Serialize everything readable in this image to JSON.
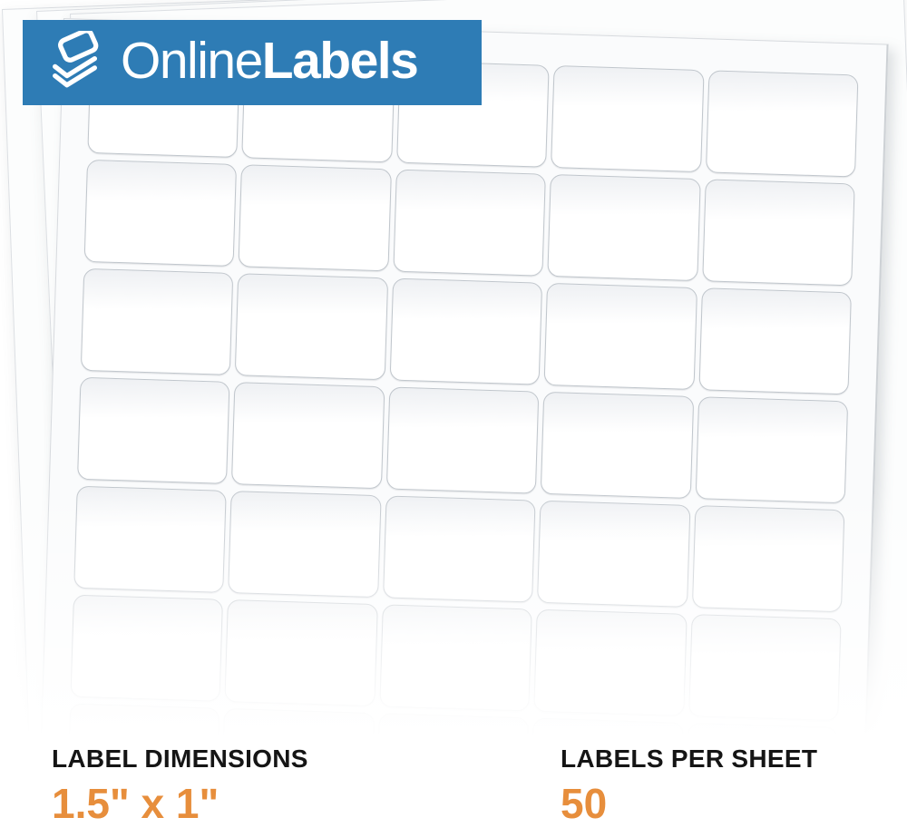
{
  "brand": {
    "banner": {
      "text_regular": "Online",
      "text_bold": "Labels",
      "background_color": "#2e7cb5",
      "text_color": "#ffffff",
      "icon": "stacked-labels-icon"
    }
  },
  "specs": {
    "dimensions": {
      "label": "LABEL DIMENSIONS",
      "value": "1.5\" x 1\""
    },
    "per_sheet": {
      "label": "LABELS PER SHEET",
      "value": "50"
    },
    "label_color": "#151515",
    "value_color": "#e78e3c"
  },
  "sheet": {
    "columns": 5,
    "rows_visible": 7,
    "label_shape": "rounded-rectangle",
    "stacked_sheets": 4
  }
}
